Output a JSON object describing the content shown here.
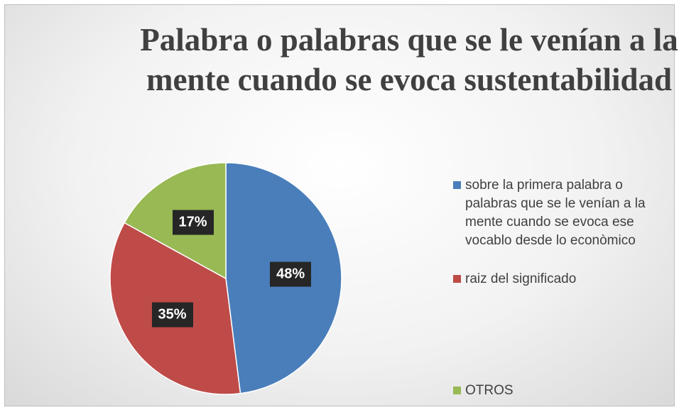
{
  "chart_data": {
    "type": "pie",
    "title": "Palabra o palabras que se le venían a la mente cuando se evoca sustentabilidad",
    "categories": [
      "sobre la primera palabra o palabras que se le venían a la mente cuando se evoca ese vocablo desde lo econòmico",
      "raiz del significado",
      "OTROS"
    ],
    "values": [
      48,
      35,
      17
    ],
    "value_labels": [
      "48%",
      "35%",
      "17%"
    ],
    "colors": [
      "#4a7ebb",
      "#be4b48",
      "#98b954"
    ],
    "legend": "right"
  }
}
